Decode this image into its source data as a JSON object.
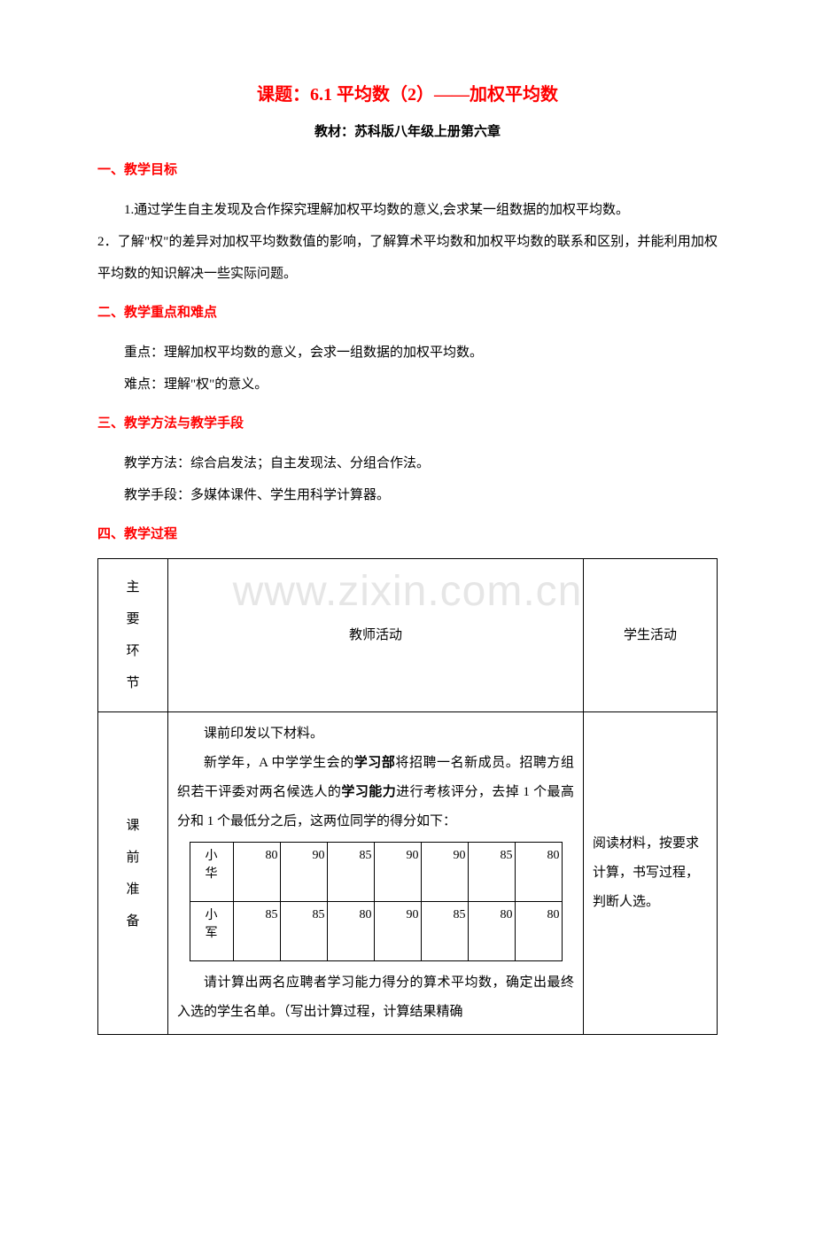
{
  "colors": {
    "title": "#ff0000",
    "section": "#ff0000",
    "body": "#000000",
    "watermark": "#e6e6e6",
    "background": "#ffffff",
    "border": "#000000"
  },
  "fonts": {
    "body_family": "SimSun",
    "title_size_pt": 15,
    "body_size_pt": 11
  },
  "title": "课题：6.1 平均数（2）——加权平均数",
  "subtitle": "教材：苏科版八年级上册第六章",
  "sections": {
    "s1": {
      "head": "一、教学目标",
      "p1": "1.通过学生自主发现及合作探究理解加权平均数的意义,会求某一组数据的加权平均数。",
      "p2": "2．了解\"权\"的差异对加权平均数数值的影响，了解算术平均数和加权平均数的联系和区别，并能利用加权平均数的知识解决一些实际问题。"
    },
    "s2": {
      "head": "二、教学重点和难点",
      "p1": "重点：理解加权平均数的意义，会求一组数据的加权平均数。",
      "p2": "难点：理解\"权\"的意义。"
    },
    "s3": {
      "head": "三、教学方法与教学手段",
      "p1": "教学方法：综合启发法；自主发现法、分组合作法。",
      "p2": "教学手段：多媒体课件、学生用科学计算器。"
    },
    "s4": {
      "head": "四、教学过程"
    }
  },
  "table": {
    "header": {
      "col1": [
        "主",
        "要",
        "环",
        "节"
      ],
      "col2": "教师活动",
      "col3": "学生活动"
    },
    "row1": {
      "col1": [
        "课",
        "前",
        "准",
        "备"
      ],
      "col2": {
        "l1": "课前印发以下材料。",
        "l2a": "新学年，A 中学学生会的",
        "l2b": "学习部",
        "l2c": "将招聘一名新成员。招聘方组织若干评委对两名候选人的",
        "l2d": "学习能力",
        "l2e": "进行考核评分，去掉 1 个最高分和 1 个最低分之后，这两位同学的得分如下：",
        "l3": "请计算出两名应聘者学习能力得分的算术平均数，确定出最终入选的学生名单。（写出计算过程，计算结果精确"
      },
      "col3": "阅读材料，按要求计算，书写过程，判断人选。"
    }
  },
  "scores": {
    "rows": [
      {
        "name1": "小",
        "name2": "华",
        "v": [
          "80",
          "90",
          "85",
          "90",
          "90",
          "85",
          "80"
        ]
      },
      {
        "name1": "小",
        "name2": "军",
        "v": [
          "85",
          "85",
          "80",
          "90",
          "85",
          "80",
          "80"
        ]
      }
    ]
  },
  "watermark": "www.zixin.com.cn"
}
